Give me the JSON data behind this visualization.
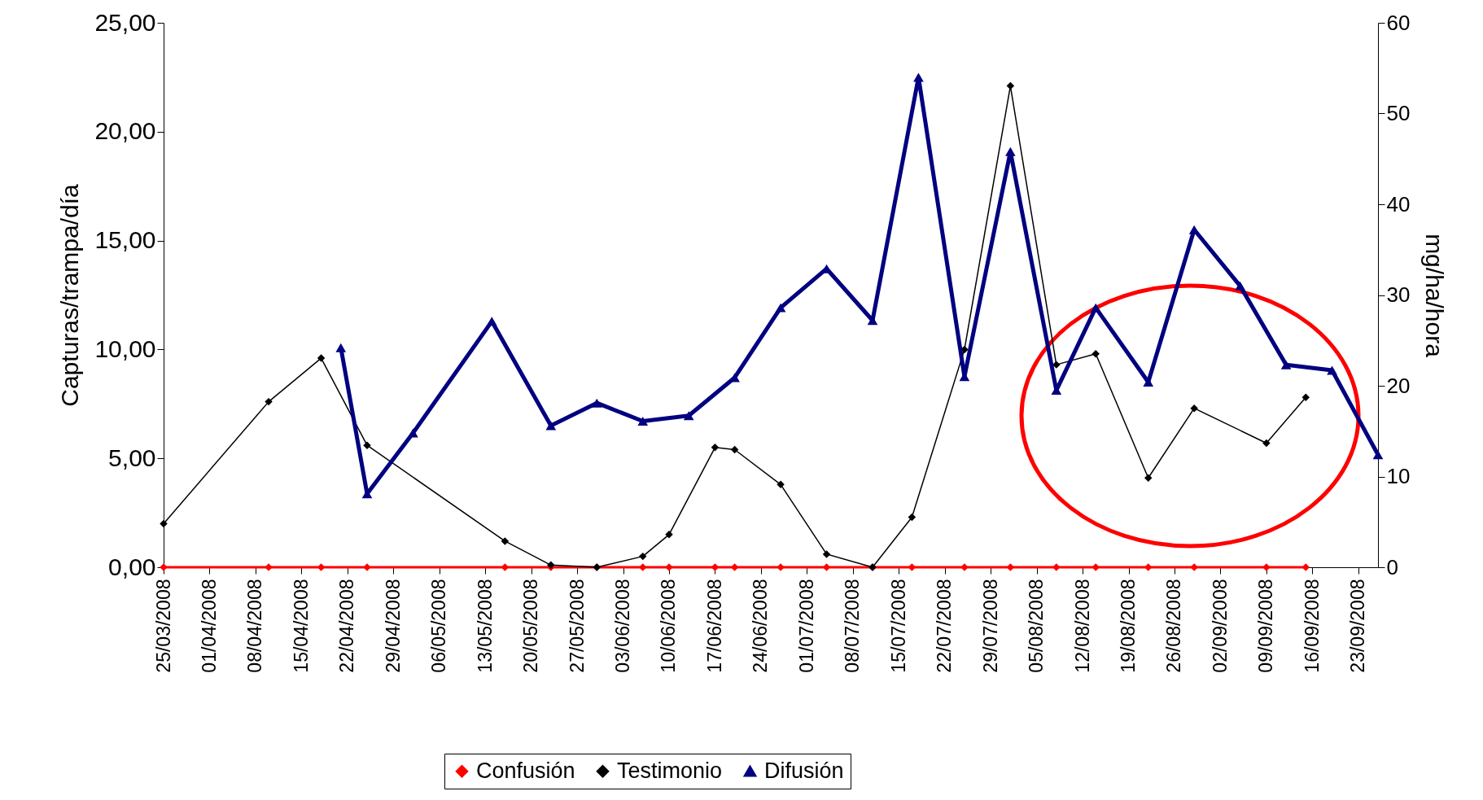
{
  "chart_data": {
    "type": "line",
    "ylabel": "Capturas/trampa/día",
    "y2label": "mg/ha/hora",
    "x": [
      "2008-03-25",
      "2008-04-10",
      "2008-04-18",
      "2008-04-25",
      "2008-05-16",
      "2008-05-23",
      "2008-05-30",
      "2008-06-06",
      "2008-06-10",
      "2008-06-17",
      "2008-06-20",
      "2008-06-27",
      "2008-07-04",
      "2008-07-11",
      "2008-07-17",
      "2008-07-25",
      "2008-08-01",
      "2008-08-08",
      "2008-08-14",
      "2008-08-22",
      "2008-08-29",
      "2008-09-09",
      "2008-09-15"
    ],
    "series": [
      {
        "name": "Confusión",
        "color": "#ff0000",
        "marker": "diamond",
        "values": [
          0,
          0,
          0,
          0,
          0,
          0,
          0,
          0,
          0,
          0,
          0,
          0,
          0,
          0,
          0,
          0,
          0,
          0,
          0,
          0,
          0,
          0,
          0
        ]
      },
      {
        "name": "Testimonio",
        "color": "#000000",
        "marker": "diamond",
        "values": [
          2.0,
          7.6,
          9.6,
          5.6,
          1.2,
          0.1,
          0.0,
          0.5,
          1.5,
          5.5,
          5.4,
          3.8,
          0.6,
          0.0,
          2.3,
          10.0,
          22.1,
          9.3,
          9.8,
          4.1,
          7.3,
          5.7,
          7.8
        ]
      },
      {
        "name": "Difusión",
        "color": "#000080",
        "marker": "triangle",
        "axis": "y2",
        "x": [
          "2008-04-21",
          "2008-04-25",
          "2008-05-02",
          "2008-05-14",
          "2008-05-23",
          "2008-05-30",
          "2008-06-06",
          "2008-06-13",
          "2008-06-20",
          "2008-06-27",
          "2008-07-04",
          "2008-07-11",
          "2008-07-18",
          "2008-07-25",
          "2008-08-01",
          "2008-08-08",
          "2008-08-14",
          "2008-08-22",
          "2008-08-29",
          "2008-09-05",
          "2008-09-12",
          "2008-09-19",
          "2008-09-26"
        ],
        "values": [
          24.2,
          8.1,
          14.8,
          27.1,
          15.6,
          18.1,
          16.1,
          16.7,
          20.9,
          28.6,
          32.9,
          27.2,
          54.0,
          21.0,
          45.8,
          19.5,
          28.6,
          20.4,
          37.2,
          31.0,
          22.3,
          21.7,
          12.4
        ]
      }
    ],
    "xlim": [
      "2008-03-25",
      "2008-09-26"
    ],
    "xticks": [
      {
        "value": "2008-03-25",
        "label": "25/03/2008"
      },
      {
        "value": "2008-04-01",
        "label": "01/04/2008"
      },
      {
        "value": "2008-04-08",
        "label": "08/04/2008"
      },
      {
        "value": "2008-04-15",
        "label": "15/04/2008"
      },
      {
        "value": "2008-04-22",
        "label": "22/04/2008"
      },
      {
        "value": "2008-04-29",
        "label": "29/04/2008"
      },
      {
        "value": "2008-05-06",
        "label": "06/05/2008"
      },
      {
        "value": "2008-05-13",
        "label": "13/05/2008"
      },
      {
        "value": "2008-05-20",
        "label": "20/05/2008"
      },
      {
        "value": "2008-05-27",
        "label": "27/05/2008"
      },
      {
        "value": "2008-06-03",
        "label": "03/06/2008"
      },
      {
        "value": "2008-06-10",
        "label": "10/06/2008"
      },
      {
        "value": "2008-06-17",
        "label": "17/06/2008"
      },
      {
        "value": "2008-06-24",
        "label": "24/06/2008"
      },
      {
        "value": "2008-07-01",
        "label": "01/07/2008"
      },
      {
        "value": "2008-07-08",
        "label": "08/07/2008"
      },
      {
        "value": "2008-07-15",
        "label": "15/07/2008"
      },
      {
        "value": "2008-07-22",
        "label": "22/07/2008"
      },
      {
        "value": "2008-07-29",
        "label": "29/07/2008"
      },
      {
        "value": "2008-08-05",
        "label": "05/08/2008"
      },
      {
        "value": "2008-08-12",
        "label": "12/08/2008"
      },
      {
        "value": "2008-08-19",
        "label": "19/08/2008"
      },
      {
        "value": "2008-08-26",
        "label": "26/08/2008"
      },
      {
        "value": "2008-09-02",
        "label": "02/09/2008"
      },
      {
        "value": "2008-09-09",
        "label": "09/09/2008"
      },
      {
        "value": "2008-09-16",
        "label": "16/09/2008"
      },
      {
        "value": "2008-09-23",
        "label": "23/09/2008"
      }
    ],
    "ylim": [
      0,
      25
    ],
    "yticks": [
      {
        "value": 0,
        "label": "0,00"
      },
      {
        "value": 5,
        "label": "5,00"
      },
      {
        "value": 10,
        "label": "10,00"
      },
      {
        "value": 15,
        "label": "15,00"
      },
      {
        "value": 20,
        "label": "20,00"
      },
      {
        "value": 25,
        "label": "25,00"
      }
    ],
    "y2lim": [
      0,
      60
    ],
    "y2ticks": [
      0,
      10,
      20,
      30,
      40,
      50,
      60
    ],
    "grid": false,
    "legend": "bottom",
    "line_style": "solid"
  }
}
